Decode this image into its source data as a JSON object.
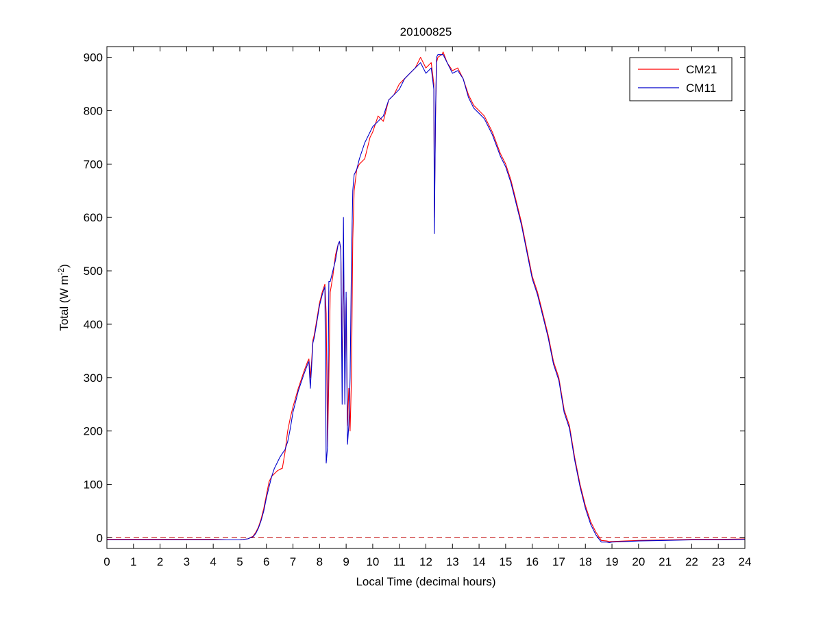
{
  "chart_data": {
    "type": "line",
    "title": "20100825",
    "xlabel": "Local Time (decimal hours)",
    "ylabel": {
      "main": "Total (W m",
      "sup": "-2",
      "close": ")"
    },
    "xlim": [
      0,
      24
    ],
    "ylim": [
      -20,
      920
    ],
    "xticks": [
      0,
      1,
      2,
      3,
      4,
      5,
      6,
      7,
      8,
      9,
      10,
      11,
      12,
      13,
      14,
      15,
      16,
      17,
      18,
      19,
      20,
      21,
      22,
      23,
      24
    ],
    "yticks": [
      0,
      100,
      200,
      300,
      400,
      500,
      600,
      700,
      800,
      900
    ],
    "legend_position": "top-right",
    "grid": false,
    "reference_line": {
      "y": 0,
      "color": "#c00000",
      "style": "dashed"
    },
    "series": [
      {
        "name": "CM21",
        "color": "#ff0000",
        "x": [
          0,
          1,
          2,
          3,
          4,
          4.5,
          5,
          5.3,
          5.5,
          5.6,
          5.7,
          5.8,
          5.9,
          6.0,
          6.1,
          6.2,
          6.3,
          6.4,
          6.5,
          6.6,
          6.7,
          6.8,
          6.9,
          7.0,
          7.2,
          7.4,
          7.55,
          7.6,
          7.65,
          7.7,
          7.75,
          7.8,
          7.9,
          8.0,
          8.1,
          8.2,
          8.25,
          8.3,
          8.35,
          8.4,
          8.5,
          8.6,
          8.7,
          8.75,
          8.8,
          8.85,
          8.9,
          8.95,
          9.0,
          9.05,
          9.1,
          9.15,
          9.2,
          9.25,
          9.3,
          9.4,
          9.5,
          9.7,
          9.9,
          10.0,
          10.2,
          10.4,
          10.6,
          10.8,
          11.0,
          11.2,
          11.4,
          11.6,
          11.8,
          12.0,
          12.2,
          12.3,
          12.32,
          12.36,
          12.4,
          12.45,
          12.6,
          12.65,
          12.8,
          13.0,
          13.2,
          13.4,
          13.6,
          13.8,
          14.0,
          14.2,
          14.5,
          14.8,
          15.0,
          15.2,
          15.4,
          15.6,
          15.8,
          16.0,
          16.2,
          16.4,
          16.6,
          16.8,
          17.0,
          17.2,
          17.4,
          17.6,
          17.8,
          18.0,
          18.2,
          18.4,
          18.6,
          18.8,
          18.9,
          19.0,
          19.5,
          20.0,
          21.0,
          22.0,
          23.0,
          24.0
        ],
        "y": [
          -3,
          -3,
          -3,
          -3,
          -3,
          -4,
          -4,
          -2,
          3,
          10,
          20,
          35,
          55,
          80,
          105,
          115,
          120,
          125,
          128,
          130,
          160,
          200,
          225,
          245,
          280,
          310,
          330,
          335,
          300,
          330,
          370,
          380,
          410,
          440,
          460,
          475,
          420,
          170,
          300,
          460,
          490,
          530,
          550,
          555,
          540,
          300,
          520,
          320,
          450,
          210,
          280,
          200,
          300,
          560,
          650,
          690,
          700,
          710,
          750,
          760,
          790,
          780,
          820,
          830,
          850,
          860,
          870,
          880,
          900,
          880,
          890,
          850,
          600,
          780,
          890,
          900,
          905,
          910,
          890,
          875,
          880,
          860,
          830,
          810,
          800,
          790,
          760,
          720,
          700,
          670,
          630,
          590,
          540,
          490,
          460,
          420,
          380,
          330,
          300,
          240,
          210,
          150,
          100,
          60,
          30,
          10,
          -5,
          -6,
          -7,
          -7,
          -6,
          -5,
          -4,
          -3,
          -3,
          -2
        ]
      },
      {
        "name": "CM11",
        "color": "#0000cc",
        "x": [
          0,
          1,
          2,
          3,
          4,
          4.5,
          5,
          5.3,
          5.5,
          5.6,
          5.7,
          5.8,
          5.9,
          6.0,
          6.1,
          6.2,
          6.3,
          6.4,
          6.5,
          6.6,
          6.7,
          6.8,
          6.9,
          7.0,
          7.2,
          7.4,
          7.55,
          7.6,
          7.65,
          7.7,
          7.75,
          7.8,
          7.9,
          8.0,
          8.1,
          8.2,
          8.25,
          8.3,
          8.35,
          8.4,
          8.5,
          8.6,
          8.7,
          8.75,
          8.8,
          8.85,
          8.9,
          8.95,
          9.0,
          9.05,
          9.1,
          9.15,
          9.2,
          9.25,
          9.3,
          9.4,
          9.5,
          9.7,
          9.9,
          10.0,
          10.2,
          10.4,
          10.6,
          10.8,
          11.0,
          11.2,
          11.4,
          11.6,
          11.8,
          12.0,
          12.2,
          12.3,
          12.32,
          12.36,
          12.4,
          12.45,
          12.6,
          12.65,
          12.8,
          13.0,
          13.2,
          13.4,
          13.6,
          13.8,
          14.0,
          14.2,
          14.5,
          14.8,
          15.0,
          15.2,
          15.4,
          15.6,
          15.8,
          16.0,
          16.2,
          16.4,
          16.6,
          16.8,
          17.0,
          17.2,
          17.4,
          17.6,
          17.8,
          18.0,
          18.2,
          18.4,
          18.6,
          18.8,
          18.9,
          19.0,
          19.5,
          20.0,
          21.0,
          22.0,
          23.0,
          24.0
        ],
        "y": [
          -4,
          -4,
          -4,
          -4,
          -4,
          -4,
          -4,
          -2,
          2,
          8,
          18,
          32,
          50,
          75,
          95,
          115,
          130,
          140,
          150,
          158,
          165,
          180,
          205,
          235,
          275,
          305,
          325,
          330,
          280,
          320,
          365,
          375,
          405,
          435,
          455,
          470,
          140,
          170,
          480,
          480,
          500,
          520,
          550,
          555,
          540,
          250,
          600,
          250,
          460,
          175,
          210,
          300,
          520,
          650,
          680,
          690,
          710,
          740,
          760,
          770,
          780,
          790,
          820,
          830,
          840,
          860,
          870,
          880,
          890,
          870,
          880,
          840,
          570,
          790,
          900,
          905,
          905,
          905,
          890,
          870,
          875,
          860,
          825,
          805,
          795,
          785,
          755,
          715,
          695,
          665,
          625,
          585,
          535,
          485,
          455,
          415,
          375,
          325,
          295,
          235,
          205,
          145,
          95,
          55,
          25,
          5,
          -8,
          -8,
          -9,
          -8,
          -7,
          -6,
          -5,
          -4,
          -4,
          -3
        ]
      }
    ]
  }
}
